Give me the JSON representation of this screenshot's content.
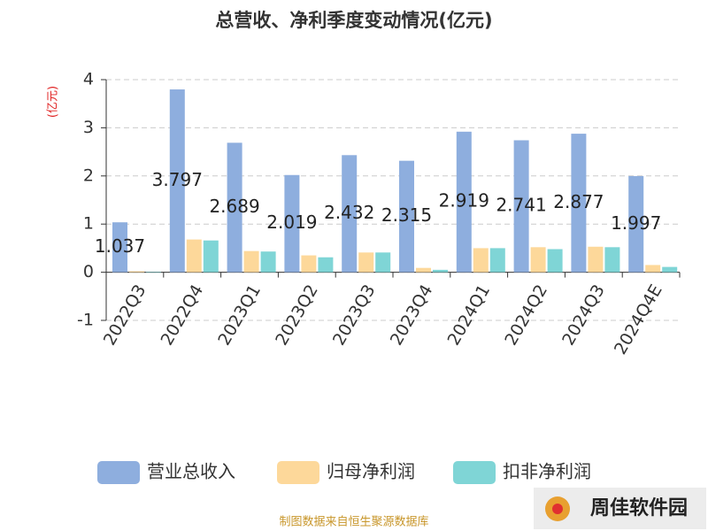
{
  "chart_data": {
    "type": "bar",
    "title": "总营收、净利季度变动情况(亿元)",
    "y_axis_label": "(亿元)",
    "categories": [
      "2022Q3",
      "2022Q4",
      "2023Q1",
      "2023Q2",
      "2023Q3",
      "2023Q4",
      "2024Q1",
      "2024Q2",
      "2024Q3",
      "2024Q4E"
    ],
    "series": [
      {
        "name": "营业总收入",
        "color": "#8eaede",
        "values": [
          1.037,
          3.797,
          2.689,
          2.019,
          2.432,
          2.315,
          2.919,
          2.741,
          2.877,
          1.997
        ],
        "data_labels": true
      },
      {
        "name": "归母净利润",
        "color": "#fdd89a",
        "values": [
          0.02,
          0.68,
          0.44,
          0.35,
          0.41,
          0.09,
          0.5,
          0.52,
          0.53,
          0.15
        ]
      },
      {
        "name": "扣非净利润",
        "color": "#7fd5d6",
        "values": [
          0.01,
          0.66,
          0.43,
          0.31,
          0.41,
          0.05,
          0.5,
          0.48,
          0.52,
          0.11
        ]
      }
    ],
    "ylim": [
      -1,
      4
    ],
    "yticks": [
      -1,
      0,
      1,
      2,
      3,
      4
    ],
    "grid": true,
    "legend": "bottom",
    "source": "制图数据来自恒生聚源数据库",
    "watermark": "周佳软件园"
  }
}
